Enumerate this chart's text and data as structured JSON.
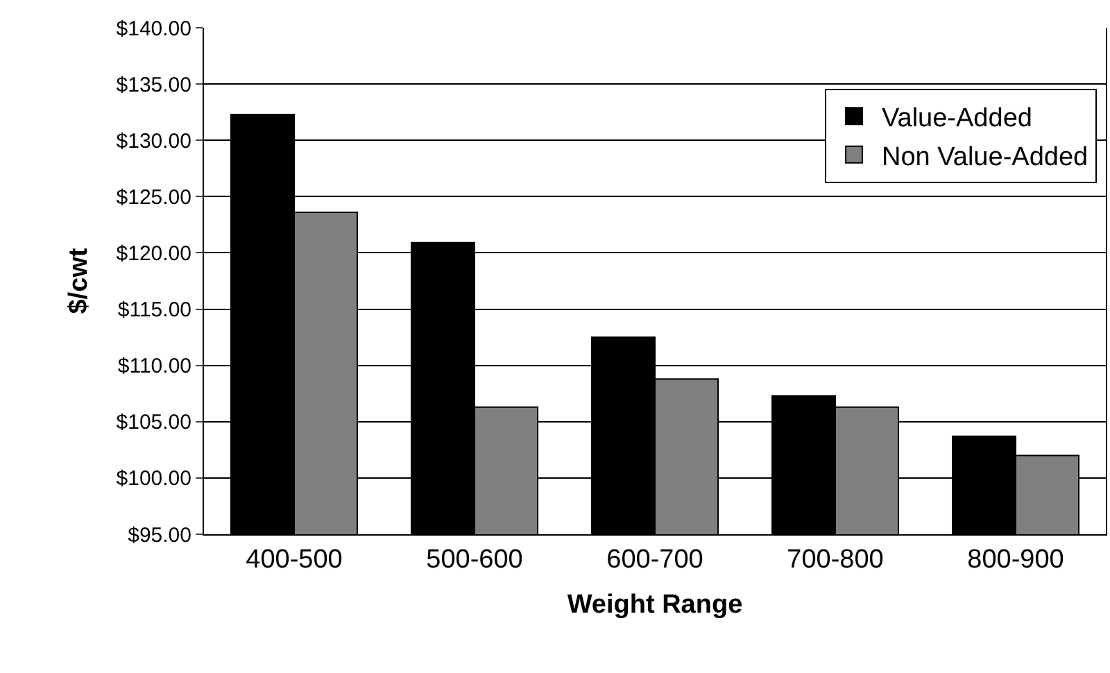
{
  "chart_data": {
    "type": "bar",
    "xlabel": "Weight Range",
    "ylabel": "$/cwt",
    "categories": [
      "400-500",
      "500-600",
      "600-700",
      "700-800",
      "800-900"
    ],
    "series": [
      {
        "name": "Value-Added",
        "color": "#000000",
        "values": [
          132.3,
          120.9,
          112.5,
          107.3,
          103.7
        ]
      },
      {
        "name": "Non Value-Added",
        "color": "#808080",
        "values": [
          123.6,
          106.3,
          108.8,
          106.3,
          102.0
        ]
      }
    ],
    "ylim": [
      95,
      140
    ],
    "yticks": [
      {
        "value": 95,
        "label": "$95.00"
      },
      {
        "value": 100,
        "label": "$100.00"
      },
      {
        "value": 105,
        "label": "$105.00"
      },
      {
        "value": 110,
        "label": "$110.00"
      },
      {
        "value": 115,
        "label": "$115.00"
      },
      {
        "value": 120,
        "label": "$120.00"
      },
      {
        "value": 125,
        "label": "$125.00"
      },
      {
        "value": 130,
        "label": "$130.00"
      },
      {
        "value": 135,
        "label": "$135.00"
      },
      {
        "value": 140,
        "label": "$140.00"
      }
    ],
    "grid": "y",
    "legend": "top right"
  }
}
